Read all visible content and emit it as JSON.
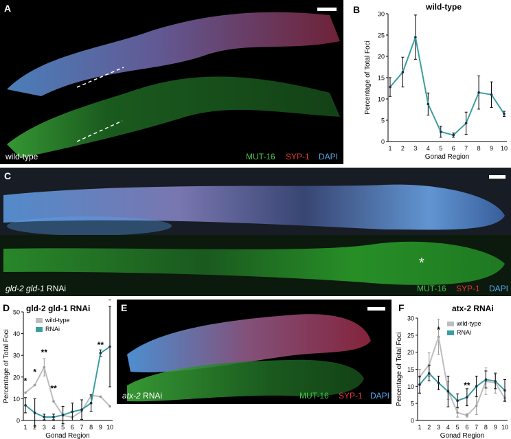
{
  "panels": {
    "A": {
      "label": "A",
      "caption": "wild-type"
    },
    "B": {
      "label": "B"
    },
    "C": {
      "label": "C",
      "caption_gene": "gld-2 gld-1",
      "caption_suffix": " RNAi",
      "asterisk": "*"
    },
    "D": {
      "label": "D"
    },
    "E": {
      "label": "E",
      "caption_gene": "atx-2",
      "caption_suffix": " RNAi"
    },
    "F": {
      "label": "F"
    }
  },
  "stains": {
    "mut16": "MUT-16",
    "syp1": "SYP-1",
    "dapi": "DAPI"
  },
  "colors": {
    "teal": "#3a9e9e",
    "grey": "#bdbdbd",
    "navy": "#1a2a55",
    "green": "#41c447",
    "red": "#e23737",
    "blue": "#5aa8f5"
  },
  "chart_data": [
    {
      "type": "line",
      "panel": "B",
      "title": "wild-type",
      "xlabel": "Gonad Region",
      "ylabel": "Percentage of Total Foci",
      "x": [
        1,
        2,
        3,
        4,
        5,
        6,
        7,
        8,
        9,
        10
      ],
      "ylim": [
        0,
        30
      ],
      "yticks": [
        0,
        5,
        10,
        15,
        20,
        25,
        30
      ],
      "series": [
        {
          "values": [
            12.8,
            16.3,
            24.5,
            8.8,
            2.3,
            1.5,
            4.3,
            11.5,
            11.0,
            6.5
          ],
          "err": [
            2.2,
            3.5,
            5.2,
            2.6,
            1.3,
            0.5,
            2.6,
            3.9,
            3.0,
            0.6
          ]
        }
      ],
      "annotations": []
    },
    {
      "type": "line",
      "panel": "D",
      "title": "gld-2 gld-1 RNAi",
      "xlabel": "Gonad Region",
      "ylabel": "Percentage of Total Foci",
      "x": [
        1,
        2,
        3,
        4,
        5,
        6,
        7,
        8,
        9,
        10
      ],
      "ylim": [
        0,
        50
      ],
      "yticks": [
        0,
        10,
        20,
        30,
        40,
        50
      ],
      "series": [
        {
          "name": "wild-type",
          "values": [
            12.8,
            16.3,
            24.5,
            8.8,
            2.3,
            1.5,
            4.3,
            11.5,
            11.0,
            6.5
          ],
          "err": [
            0,
            0,
            4.0,
            0,
            0,
            0,
            0,
            0,
            0,
            0
          ]
        },
        {
          "name": "RNAi",
          "values": [
            7.0,
            3.5,
            1.6,
            1.6,
            2.5,
            4.0,
            5.0,
            8.0,
            31.0,
            34.0
          ],
          "err": [
            3.5,
            6.5,
            1.3,
            1.3,
            4.0,
            4.0,
            4.5,
            3.8,
            1.5,
            18.5
          ]
        }
      ],
      "annotations": [
        {
          "x": 1,
          "y": 17,
          "text": "*"
        },
        {
          "x": 2,
          "y": 21,
          "text": "*"
        },
        {
          "x": 3,
          "y": 30,
          "text": "**"
        },
        {
          "x": 4,
          "y": 13.5,
          "text": "**"
        },
        {
          "x": 9,
          "y": 33.5,
          "text": "**"
        },
        {
          "x": 10,
          "y": 54,
          "text": "*"
        }
      ]
    },
    {
      "type": "line",
      "panel": "F",
      "title": "atx-2 RNAi",
      "xlabel": "Gonad Region",
      "ylabel": "Percentage of Total Foci",
      "x": [
        1,
        2,
        3,
        4,
        5,
        6,
        7,
        8,
        9,
        10
      ],
      "ylim": [
        0,
        30
      ],
      "yticks": [
        0,
        5,
        10,
        15,
        20,
        25,
        30
      ],
      "series": [
        {
          "name": "wild-type",
          "values": [
            12.8,
            16.3,
            24.5,
            8.8,
            2.3,
            1.5,
            4.3,
            11.5,
            11.0,
            6.5
          ],
          "err": [
            2.2,
            3.5,
            5.2,
            2.6,
            1.3,
            0.5,
            2.6,
            3.9,
            3.0,
            0.6
          ]
        },
        {
          "name": "RNAi",
          "values": [
            10.5,
            13.8,
            11.0,
            8.5,
            5.8,
            6.8,
            10.0,
            12.0,
            11.5,
            8.8
          ],
          "err": [
            2.5,
            2.2,
            2.0,
            4.5,
            2.0,
            2.5,
            3.0,
            2.5,
            2.2,
            3.2
          ]
        }
      ],
      "annotations": [
        {
          "x": 3,
          "y": 25.8,
          "text": "*"
        },
        {
          "x": 6,
          "y": 9.5,
          "text": "**"
        }
      ]
    }
  ]
}
